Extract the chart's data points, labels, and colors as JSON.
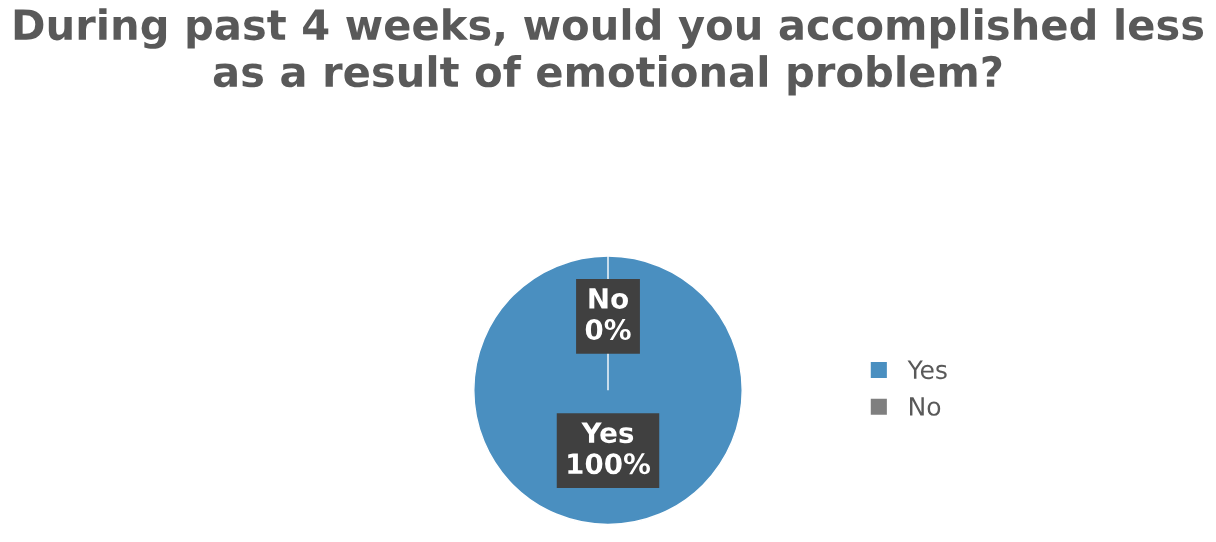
{
  "chart_data": {
    "type": "pie",
    "title": "During past 4 weeks, would you accomplished less as a result of emotional problem?",
    "categories": [
      "Yes",
      "No"
    ],
    "values": [
      100,
      0
    ],
    "colors": [
      "#4a8fc0",
      "#7f7f7f"
    ],
    "value_labels": [
      "100%",
      "0%"
    ],
    "legend": "right"
  }
}
